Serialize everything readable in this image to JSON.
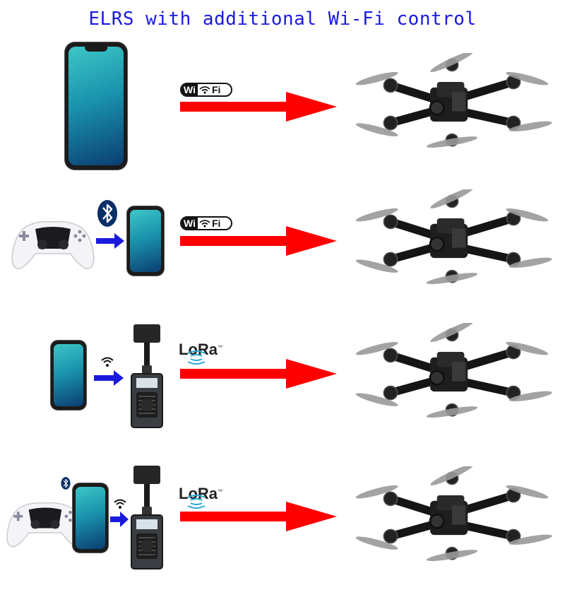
{
  "title": "ELRS with additional Wi-Fi control",
  "colors": {
    "title": "#1a1adf",
    "long_arrow": "#ff0000",
    "short_arrow": "#1a1adf",
    "bluetooth": "#0a2f66"
  },
  "rows": [
    {
      "source": [
        "phone"
      ],
      "link_label_left": "Wi",
      "link_label_right": "Fi",
      "link_icon": "wifi-logo",
      "target": "drone"
    },
    {
      "source": [
        "gamepad",
        "bluetooth",
        "phone"
      ],
      "link_label_left": "Wi",
      "link_label_right": "Fi",
      "link_icon": "wifi-logo",
      "target": "drone"
    },
    {
      "source": [
        "phone",
        "wifi-signal",
        "elrs-transmitter"
      ],
      "link_label": "LoRa",
      "link_icon": "lora-logo",
      "target": "drone"
    },
    {
      "source": [
        "gamepad",
        "bluetooth",
        "phone",
        "wifi-signal",
        "elrs-transmitter"
      ],
      "link_label": "LoRa",
      "link_icon": "lora-logo",
      "target": "drone"
    }
  ],
  "badges": {
    "wifi_left": "Wi",
    "wifi_right": "Fi",
    "lora": "LoRa",
    "lora_tm": "™"
  }
}
